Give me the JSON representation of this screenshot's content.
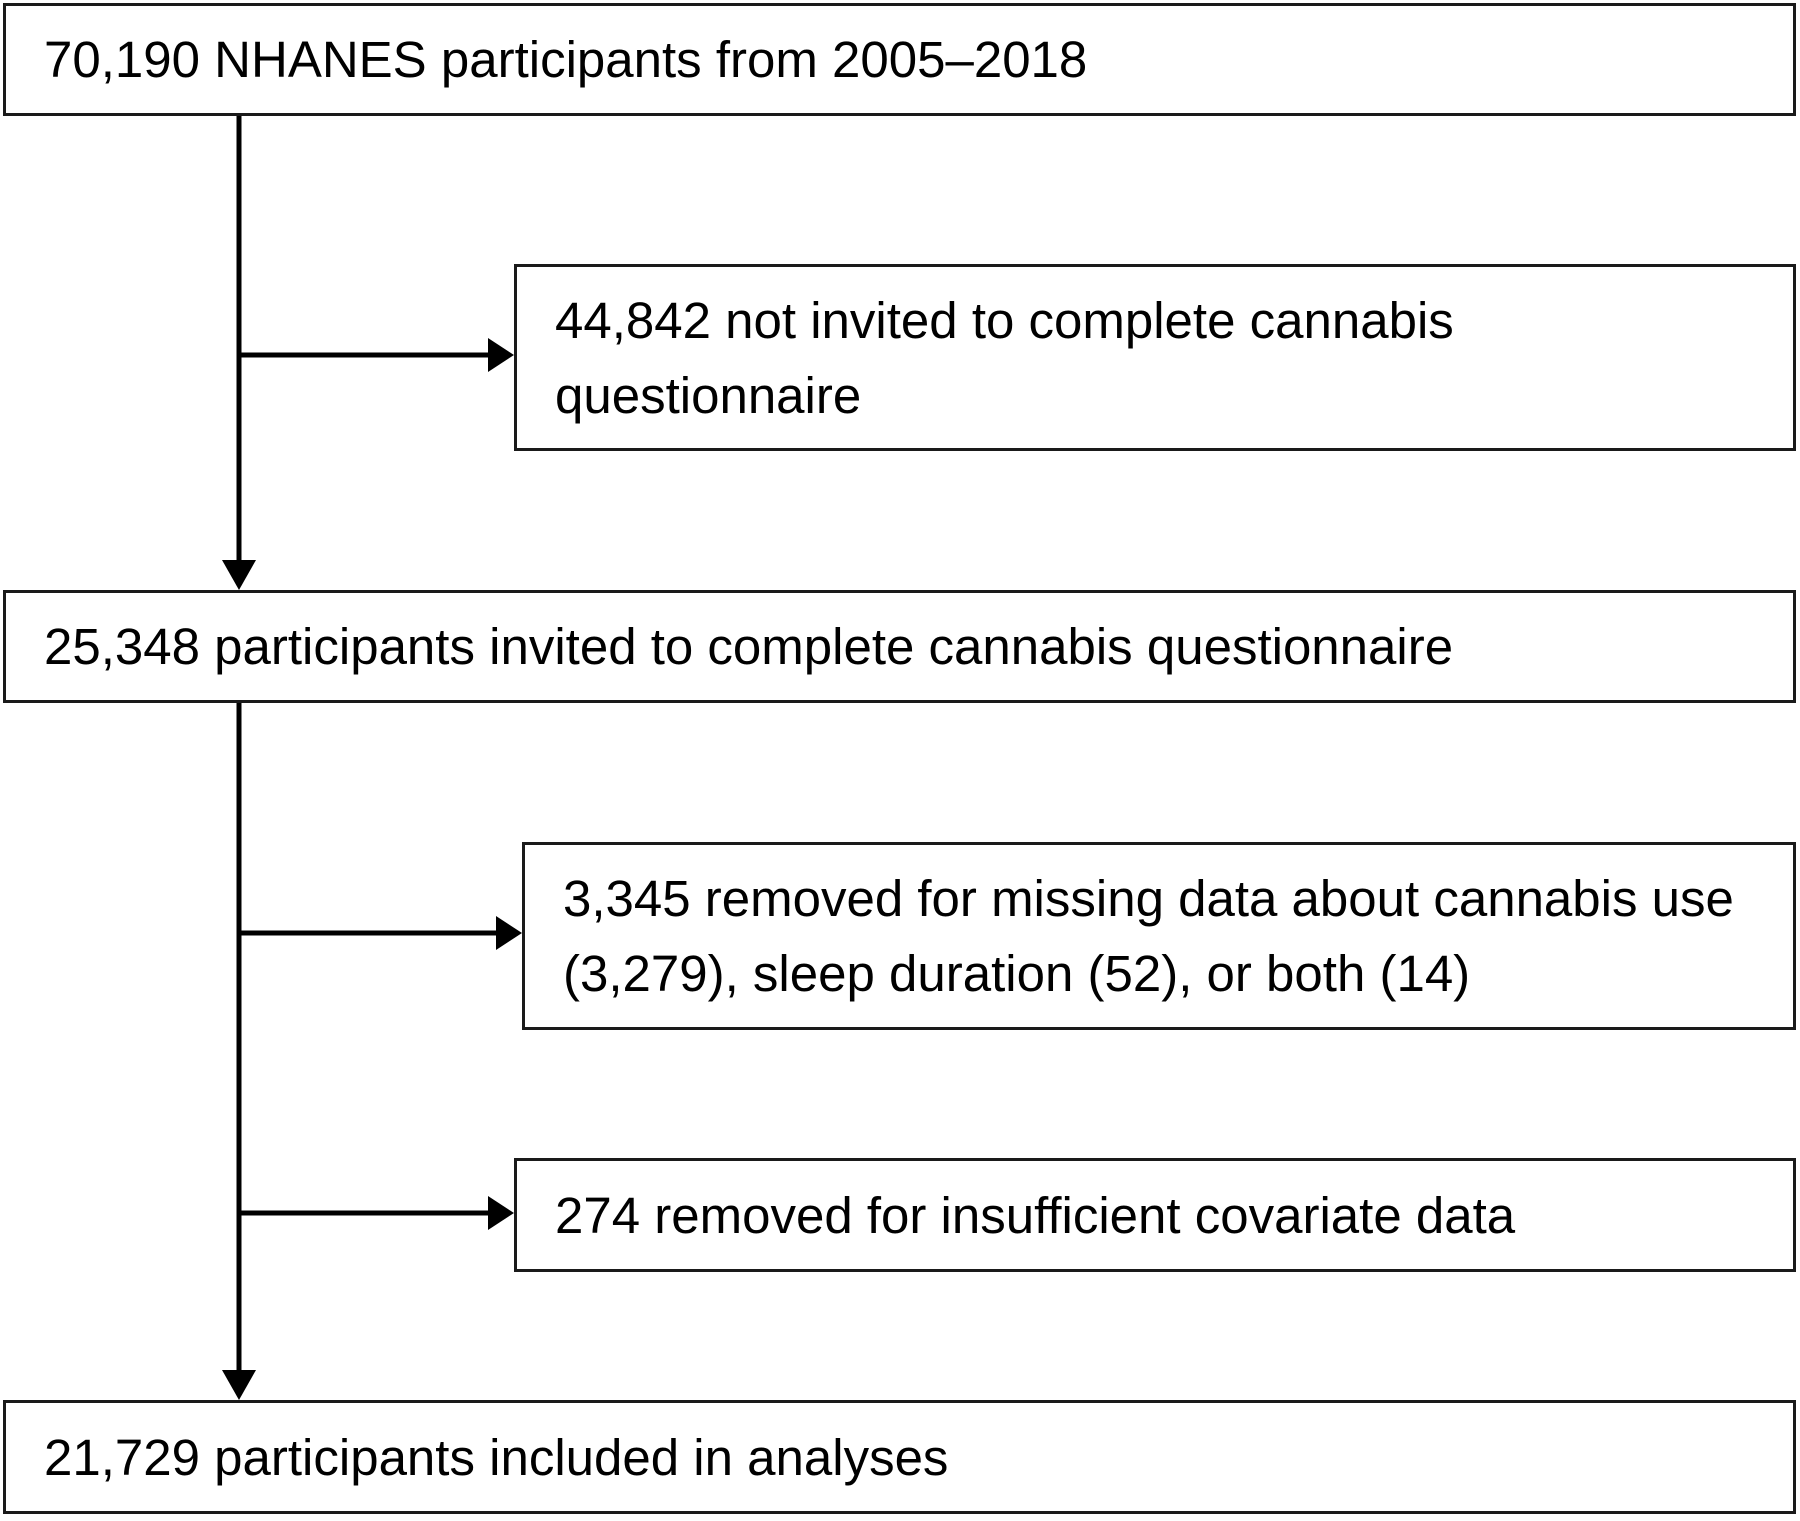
{
  "flowchart": {
    "total": "70,190 NHANES participants from 2005–2018",
    "not_invited": "44,842 not invited to complete cannabis questionnaire",
    "invited": "25,348 participants invited to complete cannabis questionnaire",
    "missing_data": "3,345 removed for missing data about cannabis use (3,279), sleep duration (52), or both (14)",
    "insufficient_covariate": "274 removed for insufficient covariate data",
    "included": "21,729 participants included in analyses"
  }
}
